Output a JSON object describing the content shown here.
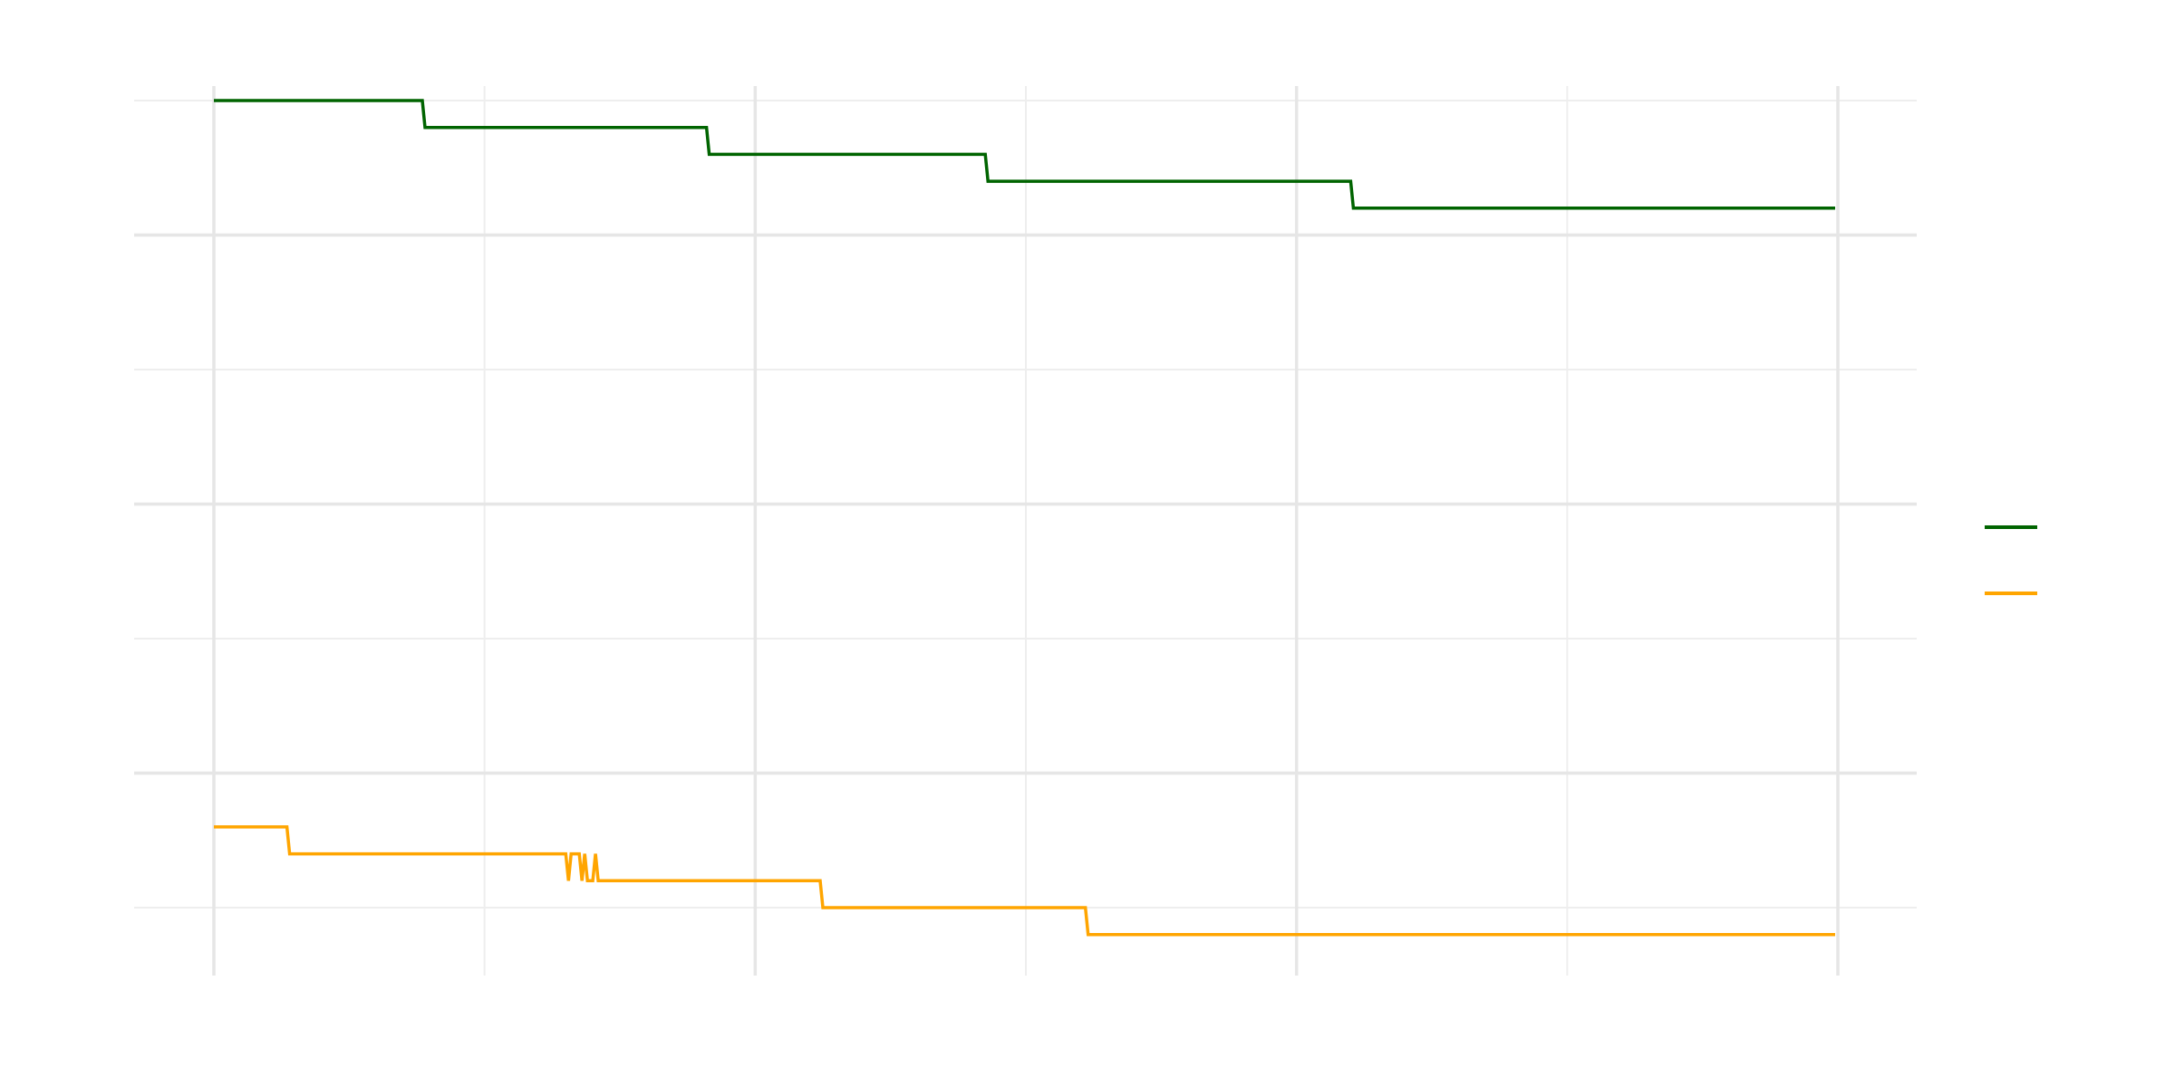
{
  "chart_data": {
    "type": "line",
    "title": "",
    "xlabel": "",
    "ylabel": "",
    "xlim": [
      0,
      6
    ],
    "ylim": [
      0.7,
      7.3
    ],
    "x_major": [
      0,
      2,
      4,
      6
    ],
    "x_minor": [
      1,
      3,
      5
    ],
    "y_major": [
      2,
      4,
      6
    ],
    "y_minor": [
      1,
      3,
      5,
      7
    ],
    "grid": true,
    "legend_position": "right",
    "series": [
      {
        "color": "#006400",
        "points": [
          [
            0,
            7.0
          ],
          [
            0.77,
            7.0
          ],
          [
            0.78,
            6.8
          ],
          [
            1.82,
            6.8
          ],
          [
            1.83,
            6.6
          ],
          [
            2.85,
            6.6
          ],
          [
            2.86,
            6.4
          ],
          [
            4.2,
            6.4
          ],
          [
            4.21,
            6.2
          ],
          [
            5.99,
            6.2
          ]
        ]
      },
      {
        "color": "#FFA500",
        "points": [
          [
            0,
            1.6
          ],
          [
            0.27,
            1.6
          ],
          [
            0.28,
            1.4
          ],
          [
            1.3,
            1.4
          ],
          [
            1.31,
            1.2
          ],
          [
            1.32,
            1.4
          ],
          [
            1.35,
            1.4
          ],
          [
            1.36,
            1.2
          ],
          [
            1.37,
            1.4
          ],
          [
            1.38,
            1.2
          ],
          [
            1.4,
            1.2
          ],
          [
            1.41,
            1.4
          ],
          [
            1.42,
            1.2
          ],
          [
            2.24,
            1.2
          ],
          [
            2.25,
            1.0
          ],
          [
            3.22,
            1.0
          ],
          [
            3.23,
            0.8
          ],
          [
            5.99,
            0.8
          ]
        ]
      }
    ]
  }
}
